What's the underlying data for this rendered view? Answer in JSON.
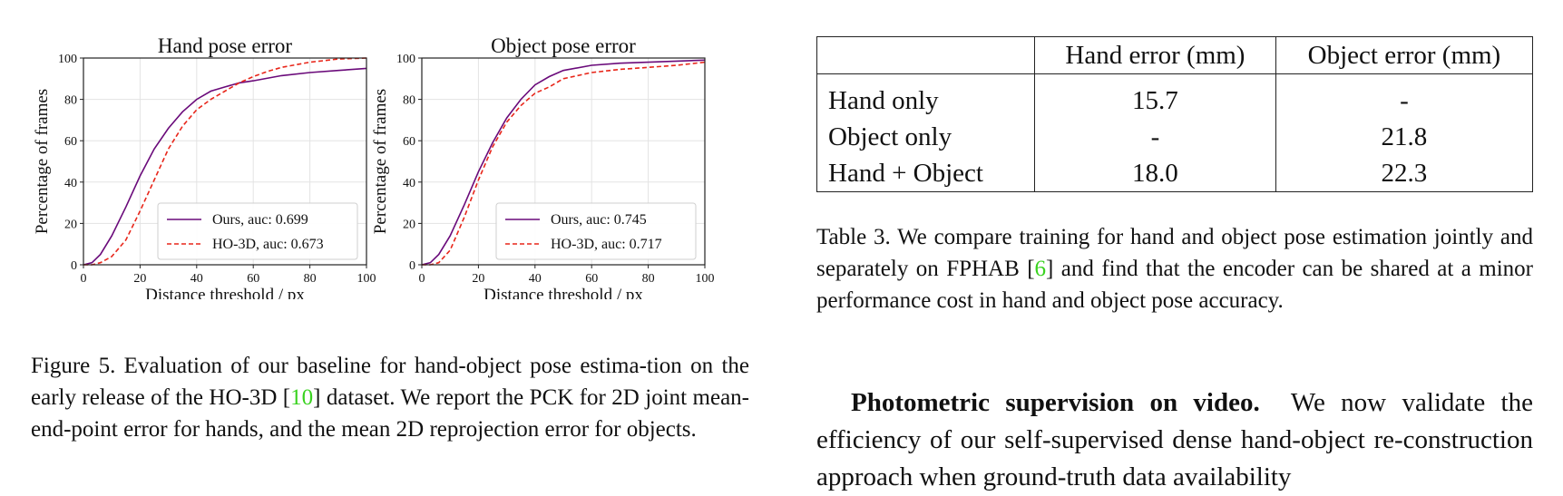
{
  "figure": {
    "caption_prefix": "Figure 5. Evaluation of our baseline for hand-object pose estima-tion on the early release of the HO-3D [",
    "caption_cite": "10",
    "caption_suffix": "] dataset. We report the PCK for 2D joint mean-end-point error for hands, and the mean 2D reprojection error for objects."
  },
  "chart_data": [
    {
      "type": "line",
      "title": "Hand pose error",
      "xlabel": "Distance threshold / px",
      "ylabel": "Percentage of frames",
      "xlim": [
        0,
        100
      ],
      "ylim": [
        0,
        100
      ],
      "xticks": [
        "0",
        "20",
        "40",
        "60",
        "80",
        "100"
      ],
      "yticks": [
        "0",
        "20",
        "40",
        "60",
        "80",
        "100"
      ],
      "grid": true,
      "legend_position": "lower-right",
      "series": [
        {
          "name": "Ours, auc: 0.699",
          "color": "#6a0a7a",
          "dash": "solid",
          "x": [
            0,
            3,
            6,
            10,
            15,
            20,
            25,
            30,
            35,
            40,
            45,
            50,
            55,
            60,
            70,
            80,
            90,
            100
          ],
          "y": [
            0,
            1,
            5,
            14,
            28,
            43,
            56,
            66,
            74,
            80,
            84,
            86,
            88,
            89,
            91.5,
            93,
            94,
            95
          ]
        },
        {
          "name": "HO-3D, auc: 0.673",
          "color": "#e8261a",
          "dash": "dashed",
          "x": [
            0,
            3,
            6,
            10,
            15,
            20,
            25,
            30,
            35,
            40,
            45,
            50,
            55,
            60,
            65,
            70,
            80,
            90,
            100
          ],
          "y": [
            0,
            0,
            1,
            4,
            12,
            26,
            41,
            56,
            67,
            75,
            80,
            84,
            88,
            91,
            93.5,
            95.5,
            98,
            99.5,
            100
          ]
        }
      ]
    },
    {
      "type": "line",
      "title": "Object pose error",
      "xlabel": "Distance threshold / px",
      "ylabel": "Percentage of frames",
      "xlim": [
        0,
        100
      ],
      "ylim": [
        0,
        100
      ],
      "xticks": [
        "0",
        "20",
        "40",
        "60",
        "80",
        "100"
      ],
      "yticks": [
        "0",
        "20",
        "40",
        "60",
        "80",
        "100"
      ],
      "grid": true,
      "legend_position": "lower-right",
      "series": [
        {
          "name": "Ours, auc: 0.745",
          "color": "#6a0a7a",
          "dash": "solid",
          "x": [
            0,
            3,
            6,
            10,
            15,
            20,
            25,
            30,
            35,
            40,
            45,
            50,
            60,
            70,
            80,
            90,
            100
          ],
          "y": [
            0,
            1,
            5,
            14,
            29,
            45,
            59,
            71,
            80,
            87,
            91,
            94,
            96.5,
            97.5,
            98,
            98.5,
            99
          ]
        },
        {
          "name": "HO-3D, auc: 0.717",
          "color": "#e8261a",
          "dash": "dashed",
          "x": [
            0,
            3,
            6,
            10,
            15,
            20,
            25,
            30,
            35,
            40,
            45,
            50,
            60,
            70,
            80,
            90,
            100
          ],
          "y": [
            0,
            0,
            1,
            7,
            23,
            41,
            57,
            69,
            77,
            83,
            86,
            90,
            93,
            94.5,
            95.5,
            96.5,
            98
          ]
        }
      ]
    }
  ],
  "table": {
    "headers": [
      "",
      "Hand error (mm)",
      "Object error (mm)"
    ],
    "rows": [
      [
        "Hand only",
        "15.7",
        "-"
      ],
      [
        "Object only",
        "-",
        "21.8"
      ],
      [
        "Hand + Object",
        "18.0",
        "22.3"
      ]
    ],
    "caption_prefix": "Table 3. We compare training for hand and object pose estimation jointly and separately on FPHAB [",
    "caption_cite": "6",
    "caption_suffix": "] and find that the encoder can be shared at a minor performance cost in hand and object pose accuracy."
  },
  "paragraph": {
    "heading": "Photometric supervision on video.",
    "text": "We now validate the efficiency of our self-supervised dense hand-object re-construction approach when ground-truth data availability"
  }
}
